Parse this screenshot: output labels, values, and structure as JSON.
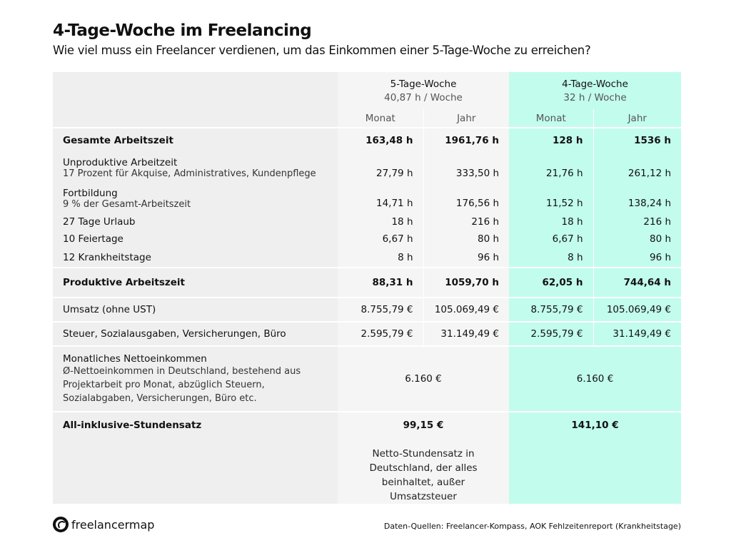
{
  "title": "4-Tage-Woche im Freelancing",
  "subtitle": "Wie viel muss ein Freelancer verdienen, um das Einkommen einer 5-Tage-Woche zu erreichen?",
  "columns": {
    "five": {
      "title": "5-Tage-Woche",
      "hours": "40,87 h / Woche",
      "month": "Monat",
      "year": "Jahr"
    },
    "four": {
      "title": "4-Tage-Woche",
      "hours": "32 h / Woche",
      "month": "Monat",
      "year": "Jahr"
    }
  },
  "rows": [
    {
      "label": "Gesamte Arbeitszeit",
      "values": [
        "163,48 h",
        "1961,76 h",
        "128 h",
        "1536 h"
      ]
    },
    {
      "label": "Unproduktive Arbeitzeit",
      "sub": "17 Prozent für Akquise, Administratives, Kundenpflege",
      "values": [
        "27,79 h",
        "333,50 h",
        "21,76 h",
        "261,12 h"
      ]
    },
    {
      "label": "Fortbildung",
      "sub": "9 % der Gesamt-Arbeitszeit",
      "values": [
        "14,71 h",
        "176,56 h",
        "11,52 h",
        "138,24 h"
      ]
    },
    {
      "label": "27 Tage Urlaub",
      "values": [
        "18 h",
        "216 h",
        "18 h",
        "216 h"
      ]
    },
    {
      "label": "10 Feiertage",
      "values": [
        "6,67 h",
        "80 h",
        "6,67 h",
        "80 h"
      ]
    },
    {
      "label": "12 Krankheitstage",
      "values": [
        "8 h",
        "96 h",
        "8 h",
        "96 h"
      ]
    },
    {
      "label": "Produktive Arbeitszeit",
      "values": [
        "88,31 h",
        "1059,70 h",
        "62,05 h",
        "744,64 h"
      ]
    },
    {
      "label": "Umsatz (ohne UST)",
      "values": [
        "8.755,79 €",
        "105.069,49 €",
        "8.755,79 €",
        "105.069,49 €"
      ]
    },
    {
      "label": "Steuer, Sozialausgaben, Versicherungen, Büro",
      "values": [
        "2.595,79 €",
        "31.149,49 €",
        "2.595,79 €",
        "31.149,49 €"
      ]
    }
  ],
  "net": {
    "label": "Monatliches Nettoeinkommen",
    "sub": "Ø-Nettoeinkommen in Deutschland, bestehend aus Projektarbeit pro Monat, abzüglich Steuern, Sozialabgaben, Versicherungen, Büro etc.",
    "five": "6.160 €",
    "four": "6.160 €"
  },
  "rate": {
    "label": "All-inklusive-Stundensatz",
    "five": "99,15 €",
    "four": "141,10 €",
    "note": "Netto-Stundensatz in Deutschland, der alles beinhaltet, außer Umsatzsteuer"
  },
  "logo": "freelancermap",
  "source": "Daten-Quellen: Freelancer-Kompass, AOK Fehlzeitenreport (Krankheitstage)",
  "colors": {
    "four_day_bg": "#c2fcec",
    "five_day_bg": "#f5f5f5",
    "label_bg": "#efefef"
  }
}
